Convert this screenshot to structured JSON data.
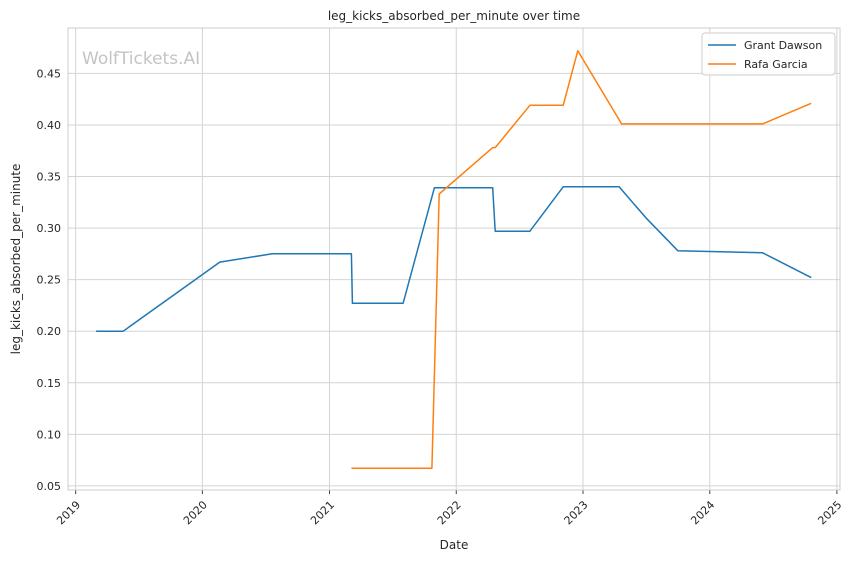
{
  "chart_data": {
    "type": "line",
    "title": "leg_kicks_absorbed_per_minute over time",
    "xlabel": "Date",
    "ylabel": "leg_kicks_absorbed_per_minute",
    "watermark": "WolfTickets.AI",
    "grid": true,
    "legend_position": "top-right",
    "xlim": [
      "2018-12-10",
      "2025-01-10"
    ],
    "ylim": [
      0.046,
      0.494
    ],
    "x_ticks": [
      "2019",
      "2020",
      "2021",
      "2022",
      "2023",
      "2024",
      "2025"
    ],
    "y_ticks": [
      "0.05",
      "0.10",
      "0.15",
      "0.20",
      "0.25",
      "0.30",
      "0.35",
      "0.40",
      "0.45"
    ],
    "series": [
      {
        "name": "Grant Dawson",
        "color": "#1f77b4",
        "points": [
          [
            "2019-03-01",
            0.2
          ],
          [
            "2019-05-18",
            0.2
          ],
          [
            "2020-02-20",
            0.267
          ],
          [
            "2020-07-20",
            0.275
          ],
          [
            "2021-03-05",
            0.275
          ],
          [
            "2021-03-08",
            0.227
          ],
          [
            "2021-08-01",
            0.227
          ],
          [
            "2021-10-30",
            0.339
          ],
          [
            "2022-04-16",
            0.339
          ],
          [
            "2022-04-23",
            0.297
          ],
          [
            "2022-08-01",
            0.297
          ],
          [
            "2022-11-05",
            0.34
          ],
          [
            "2023-04-15",
            0.34
          ],
          [
            "2023-07-01",
            0.31
          ],
          [
            "2023-10-01",
            0.278
          ],
          [
            "2024-06-01",
            0.276
          ],
          [
            "2024-10-19",
            0.252
          ]
        ]
      },
      {
        "name": "Rafa Garcia",
        "color": "#ff7f0e",
        "points": [
          [
            "2021-03-05",
            0.067
          ],
          [
            "2021-10-23",
            0.067
          ],
          [
            "2021-11-13",
            0.333
          ],
          [
            "2022-04-16",
            0.378
          ],
          [
            "2022-04-23",
            0.378
          ],
          [
            "2022-08-01",
            0.419
          ],
          [
            "2022-11-05",
            0.419
          ],
          [
            "2022-12-17",
            0.472
          ],
          [
            "2023-04-22",
            0.401
          ],
          [
            "2024-06-01",
            0.401
          ],
          [
            "2024-10-19",
            0.421
          ]
        ]
      }
    ]
  }
}
